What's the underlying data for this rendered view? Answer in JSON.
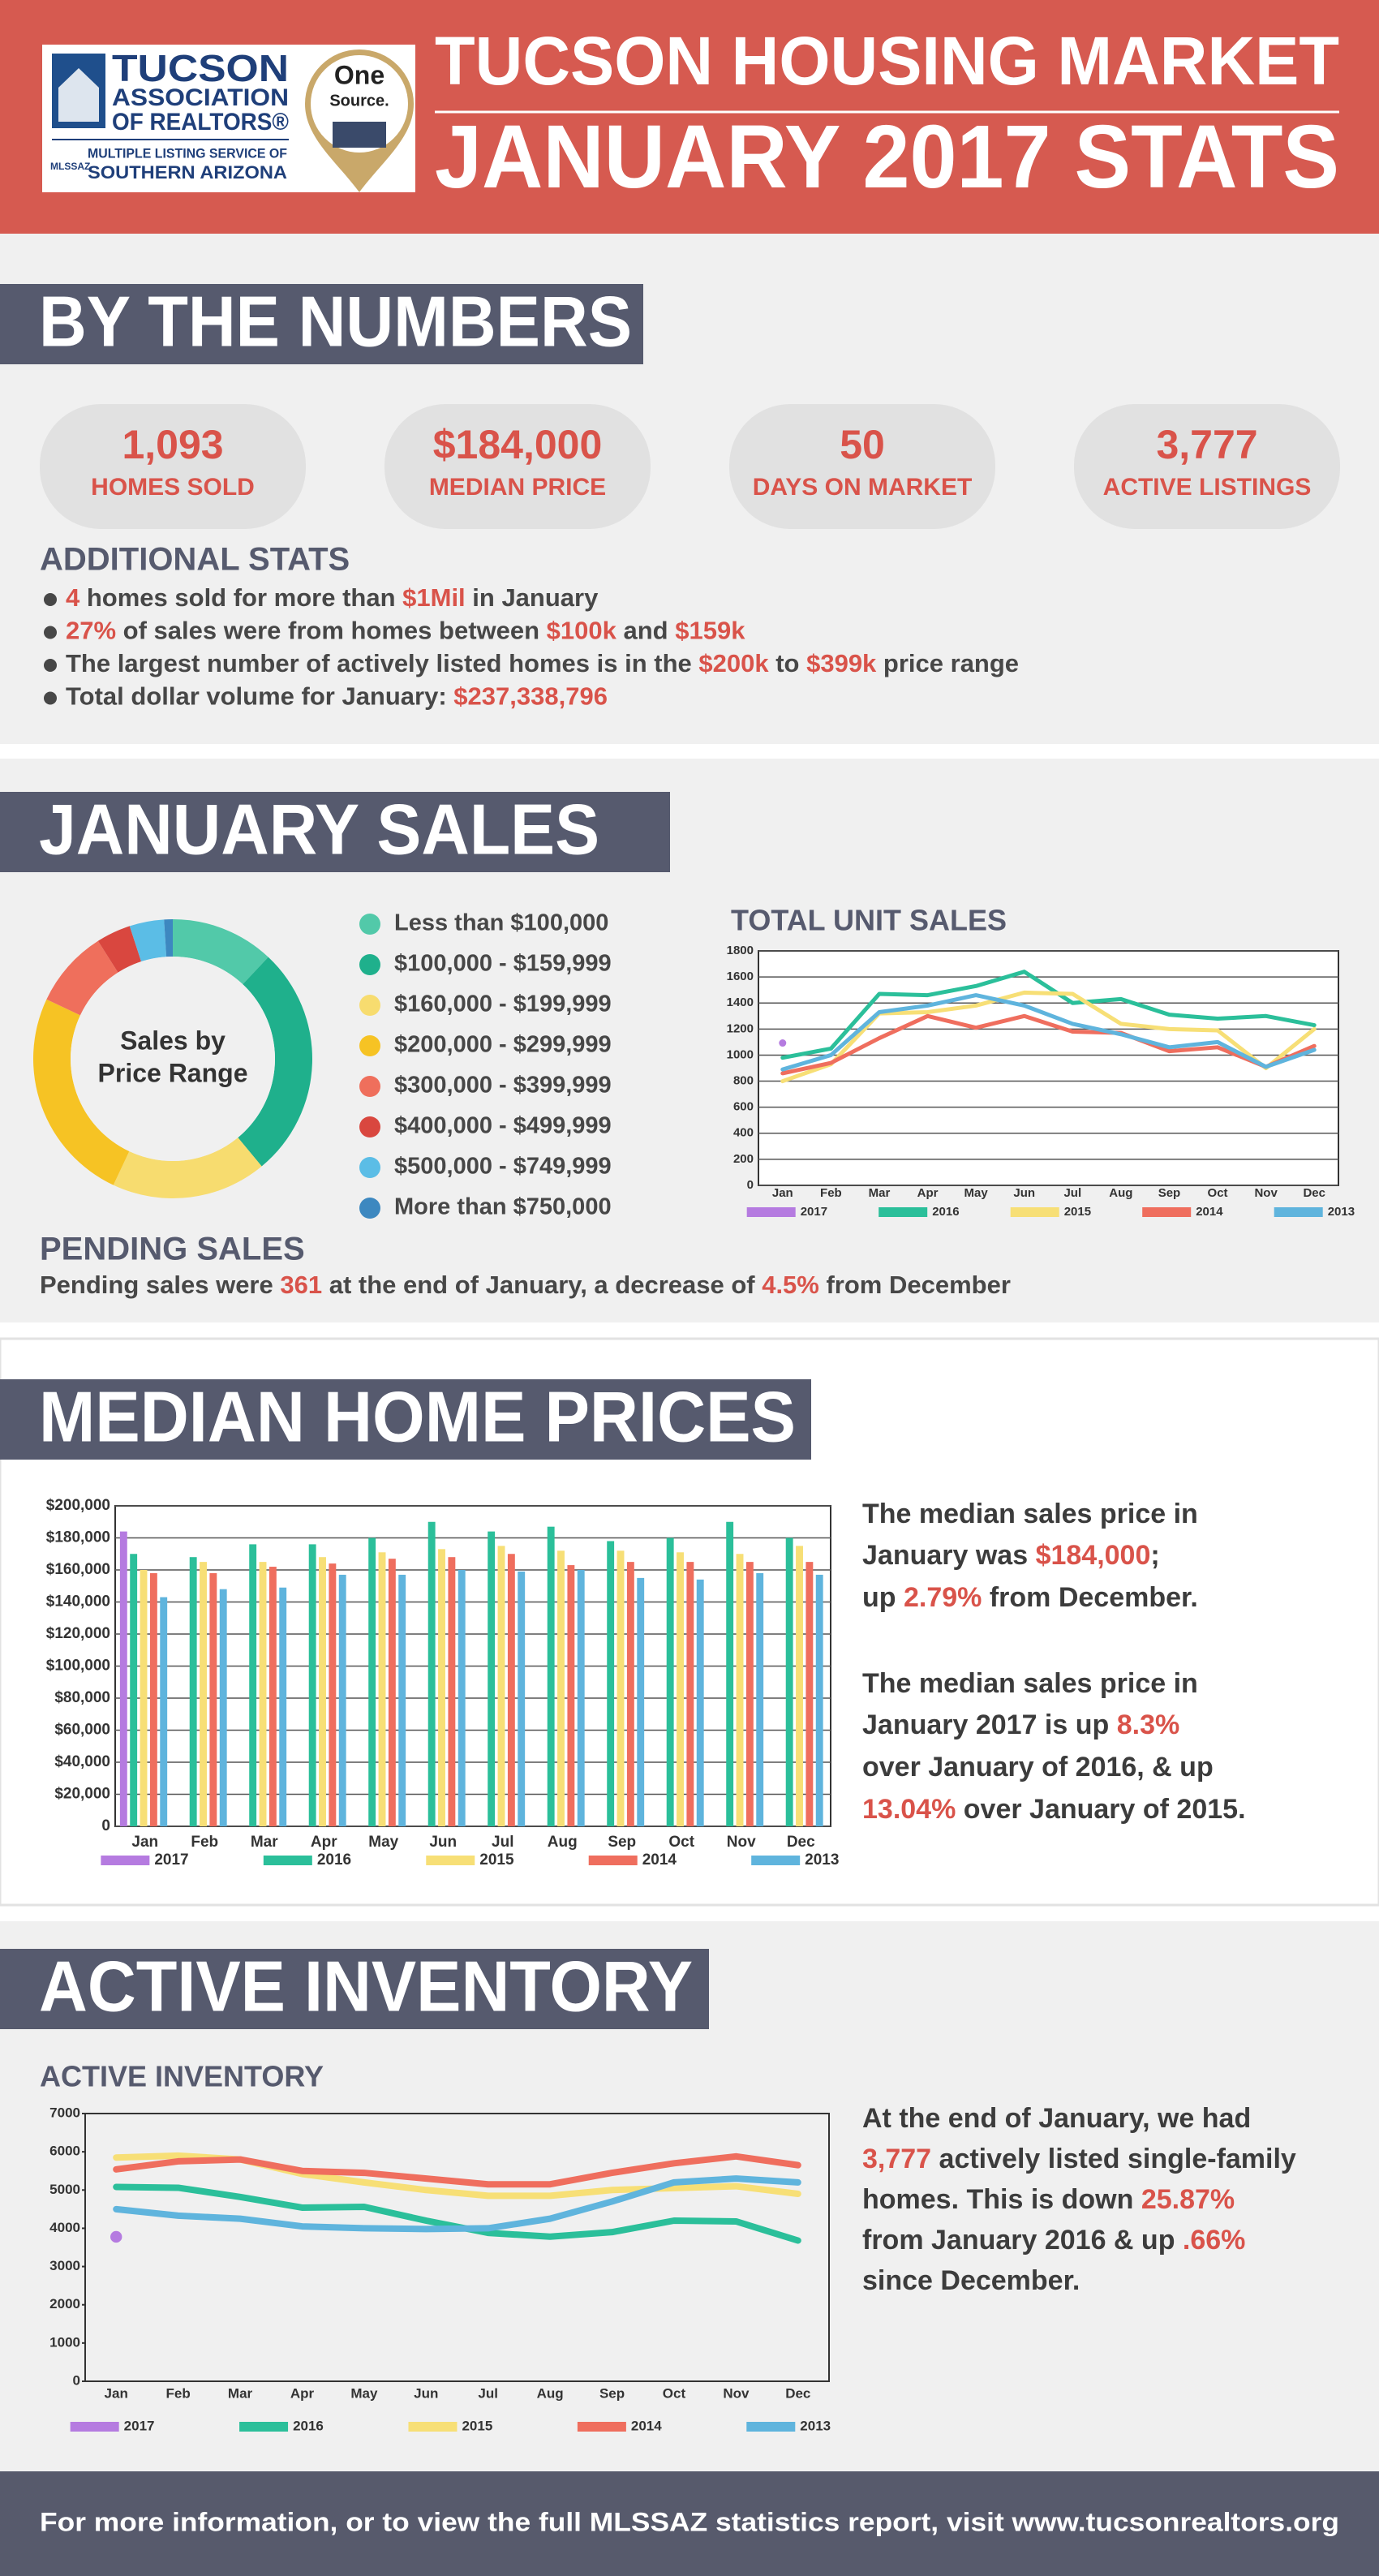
{
  "header": {
    "title_line1": "TUCSON HOUSING MARKET",
    "title_line2": "JANUARY 2017 STATS",
    "logo": {
      "lines": [
        "TUCSON",
        "ASSOCIATION",
        "OF REALTORS®"
      ],
      "mls_line1": "MULTIPLE LISTING SERVICE OF",
      "mls_line2": "SOUTHERN ARIZONA",
      "mls_mark": "MLSSAZ"
    },
    "badge": {
      "line1": "One",
      "line2": "Source."
    }
  },
  "by_the_numbers": {
    "heading": "BY THE NUMBERS",
    "stats": [
      {
        "value": "1,093",
        "label": "HOMES SOLD"
      },
      {
        "value": "$184,000",
        "label": "MEDIAN PRICE"
      },
      {
        "value": "50",
        "label": "DAYS ON MARKET"
      },
      {
        "value": "3,777",
        "label": "ACTIVE LISTINGS"
      }
    ],
    "additional_heading": "ADDITIONAL STATS",
    "bullets": [
      [
        {
          "text": "4",
          "em": true
        },
        {
          "text": " homes sold for more than "
        },
        {
          "text": "$1Mil",
          "em": true
        },
        {
          "text": " in January"
        }
      ],
      [
        {
          "text": "27%",
          "em": true
        },
        {
          "text": " of sales were from homes between "
        },
        {
          "text": "$100k",
          "em": true
        },
        {
          "text": " and "
        },
        {
          "text": "$159k",
          "em": true
        }
      ],
      [
        {
          "text": "The largest number of actively listed homes is in the "
        },
        {
          "text": "$200k",
          "em": true
        },
        {
          "text": " to "
        },
        {
          "text": "$399k",
          "em": true
        },
        {
          "text": " price range"
        }
      ],
      [
        {
          "text": "Total dollar volume for January: "
        },
        {
          "text": "$237,338,796",
          "em": true
        }
      ]
    ]
  },
  "january_sales": {
    "heading": "JANUARY SALES",
    "pending_heading": "PENDING SALES",
    "pending_text": [
      {
        "text": "Pending sales were "
      },
      {
        "text": "361",
        "em": true
      },
      {
        "text": " at the end of January, a decrease of "
      },
      {
        "text": "4.5%",
        "em": true
      },
      {
        "text": " from December"
      }
    ]
  },
  "median_home_prices": {
    "heading": "MEDIAN HOME PRICES",
    "paragraphs": [
      [
        [
          {
            "text": "The median sales price in"
          }
        ],
        [
          {
            "text": "January was "
          },
          {
            "text": "$184,000",
            "em": true
          },
          {
            "text": ";"
          }
        ],
        [
          {
            "text": "up "
          },
          {
            "text": "2.79%",
            "em": true
          },
          {
            "text": " from December."
          }
        ]
      ],
      [
        [
          {
            "text": "The median sales price in"
          }
        ],
        [
          {
            "text": "January 2017 is up "
          },
          {
            "text": "8.3%",
            "em": true
          }
        ],
        [
          {
            "text": "over January of 2016, & up"
          }
        ],
        [
          {
            "text": "13.04%",
            "em": true
          },
          {
            "text": " over January of 2015."
          }
        ]
      ]
    ]
  },
  "active_inventory": {
    "heading": "ACTIVE INVENTORY",
    "lines": [
      [
        {
          "text": "At the end of January, we had"
        }
      ],
      [
        {
          "text": "3,777",
          "em": true
        },
        {
          "text": " actively listed single-family"
        }
      ],
      [
        {
          "text": "homes. This is down "
        },
        {
          "text": "25.87%",
          "em": true
        }
      ],
      [
        {
          "text": "from January 2016 & up "
        },
        {
          "text": ".66%",
          "em": true
        }
      ],
      [
        {
          "text": "since December."
        }
      ]
    ]
  },
  "footer": {
    "text": "For more information, or to view the full MLSSAZ statistics report, visit www.tucsonrealtors.org"
  },
  "chart_data": [
    {
      "type": "pie",
      "center_text": [
        "Sales by",
        "Price Range"
      ],
      "categories": [
        "Less than $100,000",
        "$100,000 - $159,999",
        "$160,000 - $199,999",
        "$200,000 - $299,999",
        "$300,000 - $399,999",
        "$400,000 - $499,999",
        "$500,000 - $749,999",
        "More than $750,000"
      ],
      "values": [
        12,
        27,
        18,
        25,
        9,
        4,
        4,
        1
      ],
      "colors": [
        "#52c9a9",
        "#1fb08c",
        "#f7dc6f",
        "#f6c324",
        "#ef6f5c",
        "#d9473f",
        "#5bbde6",
        "#3d88c0"
      ]
    },
    {
      "type": "line",
      "title": "TOTAL UNIT SALES",
      "categories": [
        "Jan",
        "Feb",
        "Mar",
        "Apr",
        "May",
        "Jun",
        "Jul",
        "Aug",
        "Sep",
        "Oct",
        "Nov",
        "Dec"
      ],
      "series": [
        {
          "name": "2017",
          "color": "#b57be0",
          "values": [
            1093,
            null,
            null,
            null,
            null,
            null,
            null,
            null,
            null,
            null,
            null,
            null
          ]
        },
        {
          "name": "2016",
          "color": "#2bbf9a",
          "values": [
            980,
            1050,
            1470,
            1460,
            1530,
            1640,
            1400,
            1430,
            1310,
            1280,
            1300,
            1230
          ]
        },
        {
          "name": "2015",
          "color": "#f7df76",
          "values": [
            800,
            930,
            1320,
            1330,
            1380,
            1480,
            1470,
            1240,
            1200,
            1190,
            900,
            1200
          ]
        },
        {
          "name": "2014",
          "color": "#ef6e5e",
          "values": [
            860,
            940,
            1130,
            1300,
            1210,
            1300,
            1180,
            1170,
            1030,
            1060,
            910,
            1070
          ]
        },
        {
          "name": "2013",
          "color": "#5fb4dd",
          "values": [
            890,
            1000,
            1330,
            1380,
            1460,
            1380,
            1240,
            1160,
            1060,
            1100,
            910,
            1040
          ]
        }
      ],
      "ylim": [
        0,
        1800
      ],
      "yticks": [
        0,
        200,
        400,
        600,
        800,
        1000,
        1200,
        1400,
        1600,
        1800
      ],
      "grid": true
    },
    {
      "type": "bar",
      "categories": [
        "Jan",
        "Feb",
        "Mar",
        "Apr",
        "May",
        "Jun",
        "Jul",
        "Aug",
        "Sep",
        "Oct",
        "Nov",
        "Dec"
      ],
      "series": [
        {
          "name": "2017",
          "color": "#b57be0",
          "values": [
            184000,
            null,
            null,
            null,
            null,
            null,
            null,
            null,
            null,
            null,
            null,
            null
          ]
        },
        {
          "name": "2016",
          "color": "#2bbf9a",
          "values": [
            170000,
            168000,
            176000,
            176000,
            180000,
            190000,
            184000,
            187000,
            178000,
            180000,
            190000,
            180000
          ]
        },
        {
          "name": "2015",
          "color": "#f7df76",
          "values": [
            160000,
            165000,
            165000,
            168000,
            171000,
            173000,
            175000,
            172000,
            172000,
            171000,
            170000,
            175000
          ]
        },
        {
          "name": "2014",
          "color": "#ef6e5e",
          "values": [
            158000,
            158000,
            162000,
            164000,
            167000,
            168000,
            170000,
            163000,
            165000,
            165000,
            165000,
            165000
          ]
        },
        {
          "name": "2013",
          "color": "#5fb4dd",
          "values": [
            143000,
            148000,
            149000,
            157000,
            157000,
            160000,
            159000,
            160000,
            155000,
            154000,
            158000,
            157000
          ]
        }
      ],
      "ylim": [
        0,
        200000
      ],
      "yticks": [
        0,
        {
          "value": 20000,
          "label": "$20,000"
        },
        {
          "value": 40000,
          "label": "$40,000"
        },
        {
          "value": 60000,
          "label": "$60,000"
        },
        {
          "value": 80000,
          "label": "$80,000"
        },
        {
          "value": 100000,
          "label": "$100,000"
        },
        {
          "value": 120000,
          "label": "$120,000"
        },
        {
          "value": 140000,
          "label": "$140,000"
        },
        {
          "value": 160000,
          "label": "$160,000"
        },
        {
          "value": 180000,
          "label": "$180,000"
        },
        {
          "value": 200000,
          "label": "$200,000"
        }
      ],
      "grid": true
    },
    {
      "type": "line",
      "title": "ACTIVE INVENTORY",
      "categories": [
        "Jan",
        "Feb",
        "Mar",
        "Apr",
        "May",
        "Jun",
        "Jul",
        "Aug",
        "Sep",
        "Oct",
        "Nov",
        "Dec"
      ],
      "series": [
        {
          "name": "2017",
          "color": "#b57be0",
          "values": [
            3777,
            null,
            null,
            null,
            null,
            null,
            null,
            null,
            null,
            null,
            null,
            null
          ]
        },
        {
          "name": "2016",
          "color": "#2bbf9a",
          "values": [
            5080,
            5060,
            4820,
            4540,
            4560,
            4200,
            3880,
            3780,
            3900,
            4200,
            4180,
            3680
          ]
        },
        {
          "name": "2015",
          "color": "#f7df76",
          "values": [
            5850,
            5900,
            5800,
            5420,
            5200,
            5000,
            4850,
            4850,
            5000,
            5050,
            5100,
            4900
          ]
        },
        {
          "name": "2014",
          "color": "#ef6e5e",
          "values": [
            5540,
            5750,
            5800,
            5500,
            5450,
            5300,
            5150,
            5150,
            5450,
            5700,
            5880,
            5650
          ]
        },
        {
          "name": "2013",
          "color": "#5fb4dd",
          "values": [
            4500,
            4330,
            4250,
            4050,
            4000,
            3980,
            4000,
            4250,
            4700,
            5200,
            5300,
            5200
          ]
        }
      ],
      "ylim": [
        0,
        7000
      ],
      "yticks": [
        0,
        1000,
        2000,
        3000,
        4000,
        5000,
        6000,
        7000
      ],
      "grid": false
    }
  ]
}
